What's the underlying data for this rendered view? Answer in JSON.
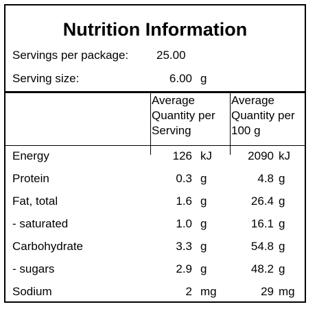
{
  "title": "Nutrition Information",
  "servings": {
    "label": "Servings per package:",
    "value": "25.00"
  },
  "serving_size": {
    "label": "Serving size:",
    "value": "6.00",
    "unit": "g"
  },
  "headers": {
    "serving": [
      "Average",
      "Quantity per",
      "Serving"
    ],
    "per100": [
      "Average",
      "Quantity per",
      "100 g"
    ]
  },
  "rows": [
    {
      "name": "Energy",
      "serving": "126",
      "serving_unit": "kJ",
      "per100": "2090",
      "per100_unit": "kJ"
    },
    {
      "name": "Protein",
      "serving": "0.3",
      "serving_unit": "g",
      "per100": "4.8",
      "per100_unit": "g"
    },
    {
      "name": "Fat, total",
      "serving": "1.6",
      "serving_unit": "g",
      "per100": "26.4",
      "per100_unit": "g"
    },
    {
      "name": "- saturated",
      "serving": "1.0",
      "serving_unit": "g",
      "per100": "16.1",
      "per100_unit": "g"
    },
    {
      "name": "Carbohydrate",
      "serving": "3.3",
      "serving_unit": "g",
      "per100": "54.8",
      "per100_unit": "g"
    },
    {
      "name": "- sugars",
      "serving": "2.9",
      "serving_unit": "g",
      "per100": "48.2",
      "per100_unit": "g"
    },
    {
      "name": "Sodium",
      "serving": "2",
      "serving_unit": "mg",
      "per100": "29",
      "per100_unit": "mg"
    }
  ]
}
